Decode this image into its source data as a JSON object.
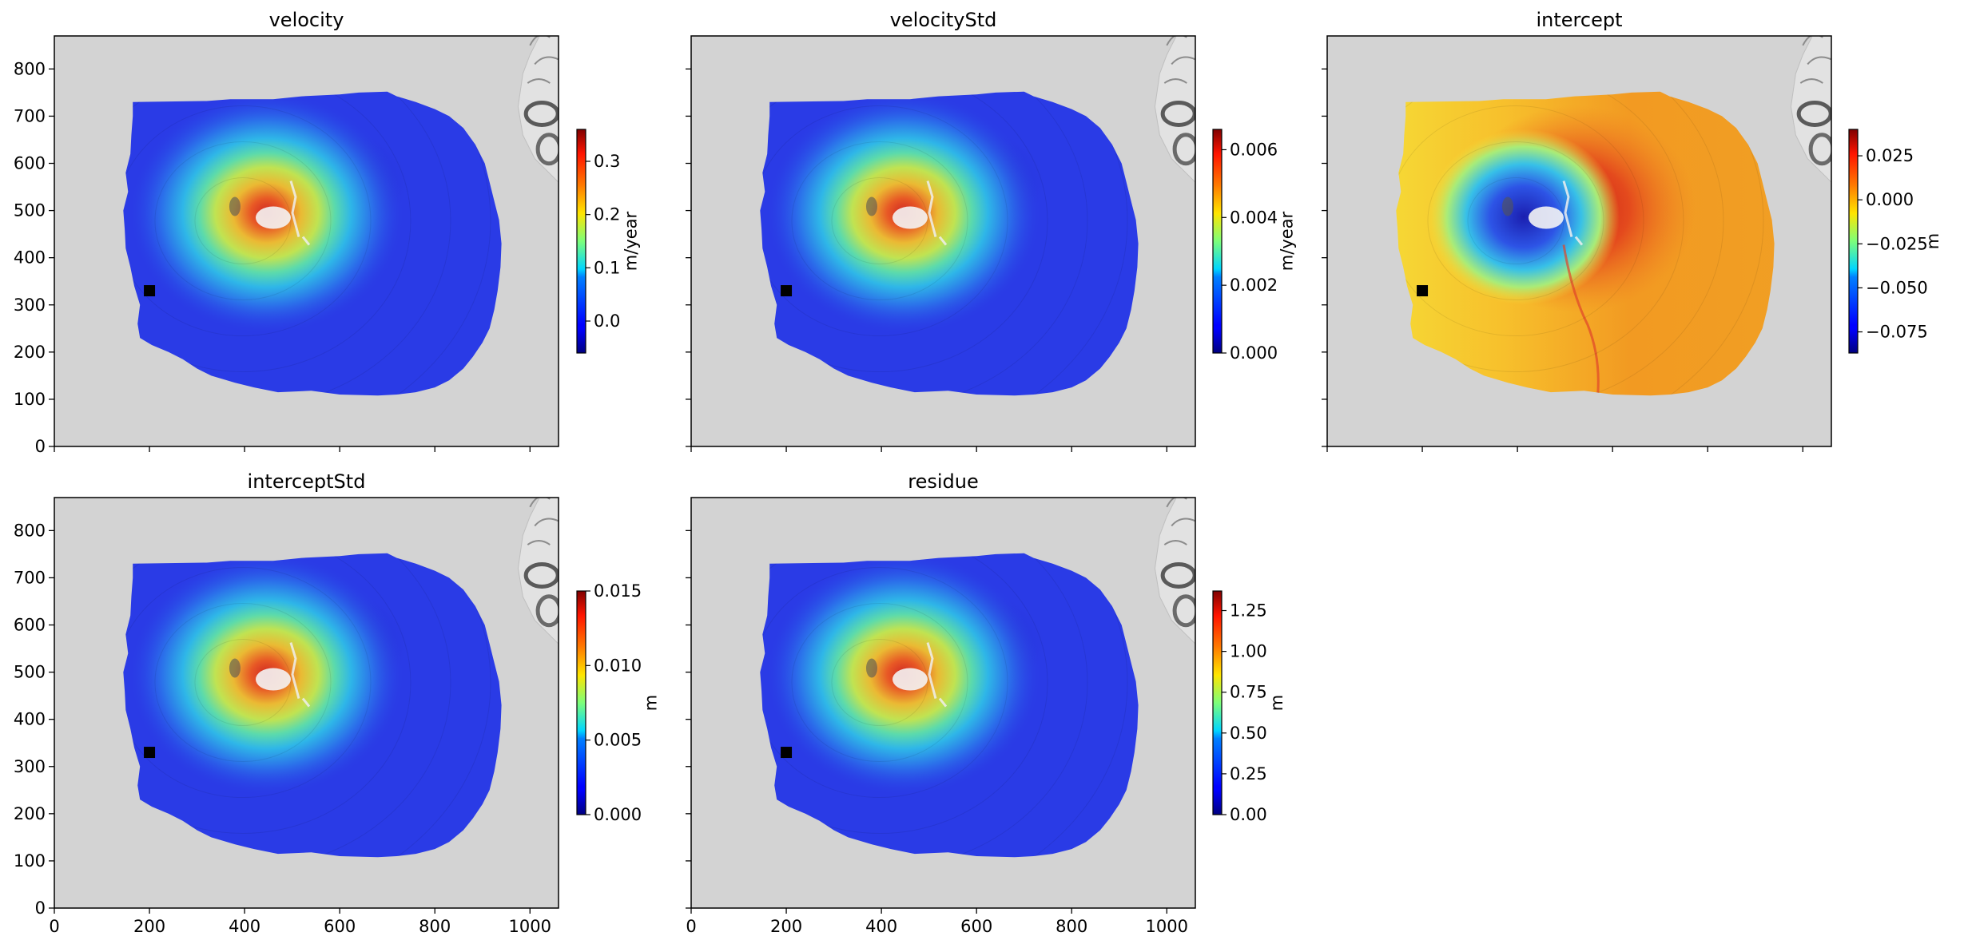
{
  "colors": {
    "background": "#d3d3d3",
    "low": "#2a3be6",
    "high": "#d62a1c",
    "mid": "#f4a11c",
    "marker": "#000000"
  },
  "colormap": "jet",
  "chart_data": [
    {
      "type": "heatmap",
      "title": "velocity",
      "xlim": [
        0,
        1060
      ],
      "ylim": [
        0,
        870
      ],
      "xticks": [
        0,
        200,
        400,
        600,
        800,
        1000
      ],
      "yticks": [
        0,
        100,
        200,
        300,
        400,
        500,
        600,
        700,
        800
      ],
      "show_x_tick_labels": false,
      "show_y_tick_labels": true,
      "marker_point": [
        200,
        330
      ],
      "colorbar": {
        "label": "m/year",
        "range": [
          -0.06,
          0.36
        ],
        "ticks": [
          0.0,
          0.1,
          0.2,
          0.3
        ],
        "tick_labels": [
          "0.0",
          "0.1",
          "0.2",
          "0.3"
        ]
      },
      "pattern": "radial-peak",
      "peak": [
        430,
        495
      ],
      "background_level": 0.12
    },
    {
      "type": "heatmap",
      "title": "velocityStd",
      "xlim": [
        0,
        1060
      ],
      "ylim": [
        0,
        870
      ],
      "xticks": [
        0,
        200,
        400,
        600,
        800,
        1000
      ],
      "yticks": [
        0,
        100,
        200,
        300,
        400,
        500,
        600,
        700,
        800
      ],
      "show_x_tick_labels": false,
      "show_y_tick_labels": false,
      "marker_point": [
        200,
        330
      ],
      "colorbar": {
        "label": "m/year",
        "range": [
          0,
          0.0066
        ],
        "ticks": [
          0.0,
          0.002,
          0.004,
          0.006
        ],
        "tick_labels": [
          "0.000",
          "0.002",
          "0.004",
          "0.006"
        ]
      },
      "pattern": "radial-peak",
      "peak": [
        430,
        495
      ],
      "background_level": 0.12
    },
    {
      "type": "heatmap",
      "title": "intercept",
      "xlim": [
        0,
        1060
      ],
      "ylim": [
        0,
        870
      ],
      "xticks": [
        0,
        200,
        400,
        600,
        800,
        1000
      ],
      "yticks": [
        0,
        100,
        200,
        300,
        400,
        500,
        600,
        700,
        800
      ],
      "show_x_tick_labels": false,
      "show_y_tick_labels": false,
      "marker_point": [
        200,
        330
      ],
      "colorbar": {
        "label": "m",
        "range": [
          -0.087,
          0.04
        ],
        "ticks": [
          -0.075,
          -0.05,
          -0.025,
          0.0,
          0.025
        ],
        "tick_labels": [
          "−0.075",
          "−0.050",
          "−0.025",
          "0.000",
          "0.025"
        ]
      },
      "pattern": "dipole",
      "peak": [
        430,
        495
      ],
      "background_level": 0.78
    },
    {
      "type": "heatmap",
      "title": "interceptStd",
      "xlim": [
        0,
        1060
      ],
      "ylim": [
        0,
        870
      ],
      "xticks": [
        0,
        200,
        400,
        600,
        800,
        1000
      ],
      "yticks": [
        0,
        100,
        200,
        300,
        400,
        500,
        600,
        700,
        800
      ],
      "show_x_tick_labels": true,
      "show_y_tick_labels": true,
      "marker_point": [
        200,
        330
      ],
      "colorbar": {
        "label": "m",
        "range": [
          0,
          0.015
        ],
        "ticks": [
          0.0,
          0.005,
          0.01,
          0.015
        ],
        "tick_labels": [
          "0.000",
          "0.005",
          "0.010",
          "0.015"
        ]
      },
      "pattern": "radial-peak",
      "peak": [
        430,
        495
      ],
      "background_level": 0.12
    },
    {
      "type": "heatmap",
      "title": "residue",
      "xlim": [
        0,
        1060
      ],
      "ylim": [
        0,
        870
      ],
      "xticks": [
        0,
        200,
        400,
        600,
        800,
        1000
      ],
      "yticks": [
        0,
        100,
        200,
        300,
        400,
        500,
        600,
        700,
        800
      ],
      "show_x_tick_labels": true,
      "show_y_tick_labels": false,
      "marker_point": [
        200,
        330
      ],
      "colorbar": {
        "label": "m",
        "range": [
          0,
          1.37
        ],
        "ticks": [
          0.0,
          0.25,
          0.5,
          0.75,
          1.0,
          1.25
        ],
        "tick_labels": [
          "0.00",
          "0.25",
          "0.50",
          "0.75",
          "1.00",
          "1.25"
        ]
      },
      "pattern": "radial-peak",
      "peak": [
        430,
        495
      ],
      "background_level": 0.12
    }
  ]
}
